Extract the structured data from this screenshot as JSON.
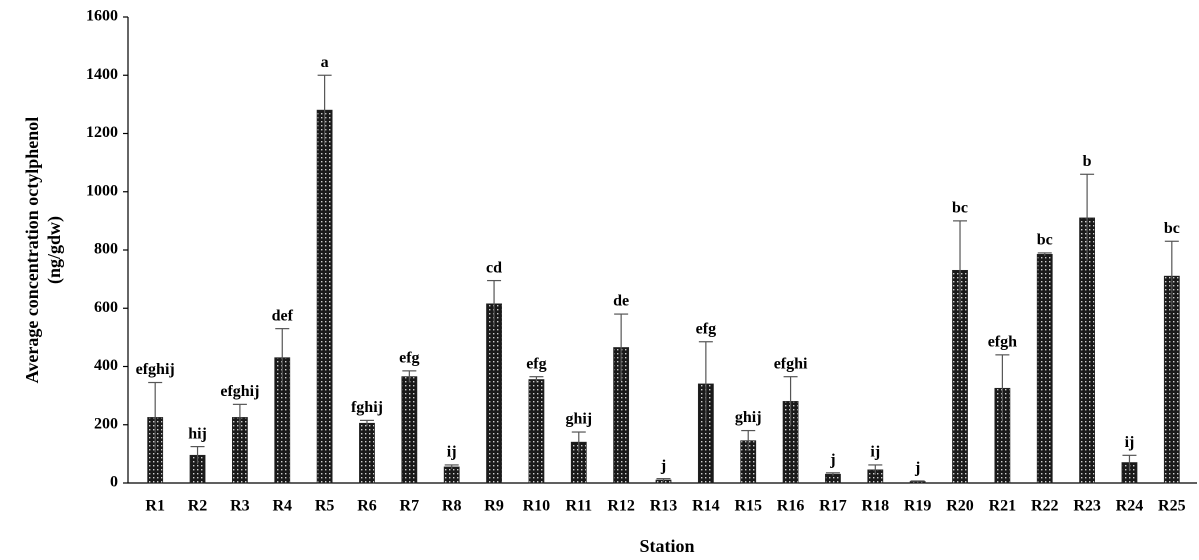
{
  "chart_data": {
    "type": "bar",
    "x_label": "Station",
    "y_label": [
      "Average concentration octylphenol",
      "(ng/gdw)"
    ],
    "categories": [
      "R1",
      "R2",
      "R3",
      "R4",
      "R5",
      "R6",
      "R7",
      "R8",
      "R9",
      "R10",
      "R11",
      "R12",
      "R13",
      "R14",
      "R15",
      "R16",
      "R17",
      "R18",
      "R19",
      "R20",
      "R21",
      "R22",
      "R23",
      "R24",
      "R25"
    ],
    "values": [
      225,
      95,
      225,
      430,
      1280,
      205,
      365,
      55,
      615,
      355,
      140,
      465,
      10,
      340,
      145,
      280,
      30,
      45,
      5,
      730,
      325,
      785,
      910,
      70,
      710
    ],
    "errors": [
      120,
      30,
      45,
      100,
      120,
      10,
      20,
      7,
      80,
      10,
      35,
      115,
      5,
      145,
      35,
      85,
      5,
      17,
      2,
      170,
      115,
      5,
      150,
      25,
      120
    ],
    "annotations": [
      "efghij",
      "hij",
      "efghij",
      "def",
      "a",
      "fghij",
      "efg",
      "ij",
      "cd",
      "efg",
      "ghij",
      "de",
      "j",
      "efg",
      "ghij",
      "efghi",
      "j",
      "ij",
      "j",
      "bc",
      "efgh",
      "bc",
      "b",
      "ij",
      "bc"
    ],
    "color": "#222222",
    "ylim": [
      0,
      1600
    ],
    "yticks": [
      0,
      200,
      400,
      600,
      800,
      1000,
      1200,
      1400,
      1600
    ],
    "grid": false
  }
}
